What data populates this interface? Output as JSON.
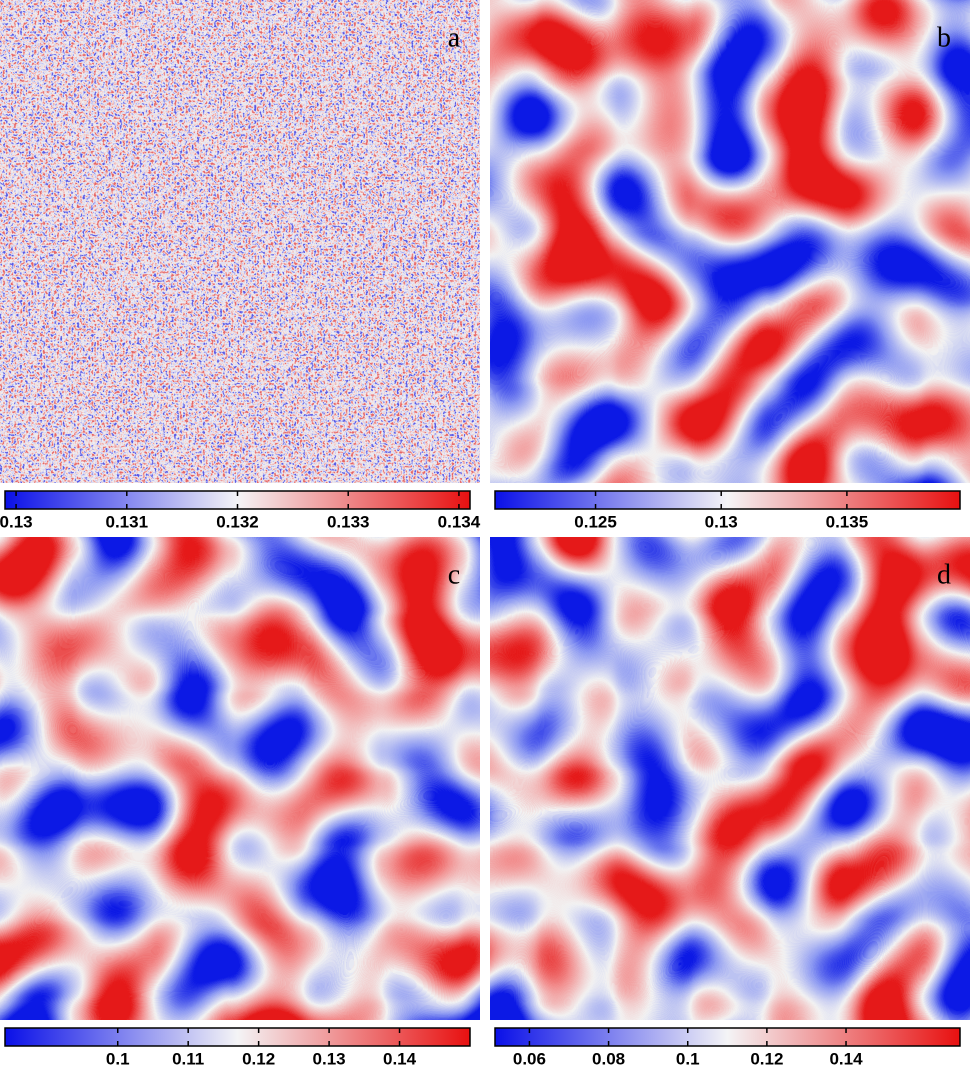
{
  "chart_data": [
    {
      "type": "heatmap",
      "label": "a",
      "colormap": [
        "#0a10e8",
        "#f4f4f6",
        "#e81010"
      ],
      "xlim": [
        0.1299,
        0.1341
      ],
      "xticks": [
        0.13,
        0.131,
        0.132,
        0.133,
        0.134
      ]
    },
    {
      "type": "heatmap",
      "label": "b",
      "colormap": [
        "#0a10e8",
        "#f4f4f6",
        "#e81010"
      ],
      "xlim": [
        0.121,
        0.1395
      ],
      "xticks": [
        0.125,
        0.13,
        0.135
      ]
    },
    {
      "type": "heatmap",
      "label": "c",
      "colormap": [
        "#0a10e8",
        "#f4f4f6",
        "#e81010"
      ],
      "xlim": [
        0.084,
        0.15
      ],
      "xticks": [
        0.1,
        0.11,
        0.12,
        0.13,
        0.14
      ]
    },
    {
      "type": "heatmap",
      "label": "d",
      "colormap": [
        "#0a10e8",
        "#f4f4f6",
        "#e81010"
      ],
      "xlim": [
        0.0513,
        0.1688
      ],
      "xticks": [
        0.06,
        0.08,
        0.1,
        0.12,
        0.14
      ]
    }
  ]
}
